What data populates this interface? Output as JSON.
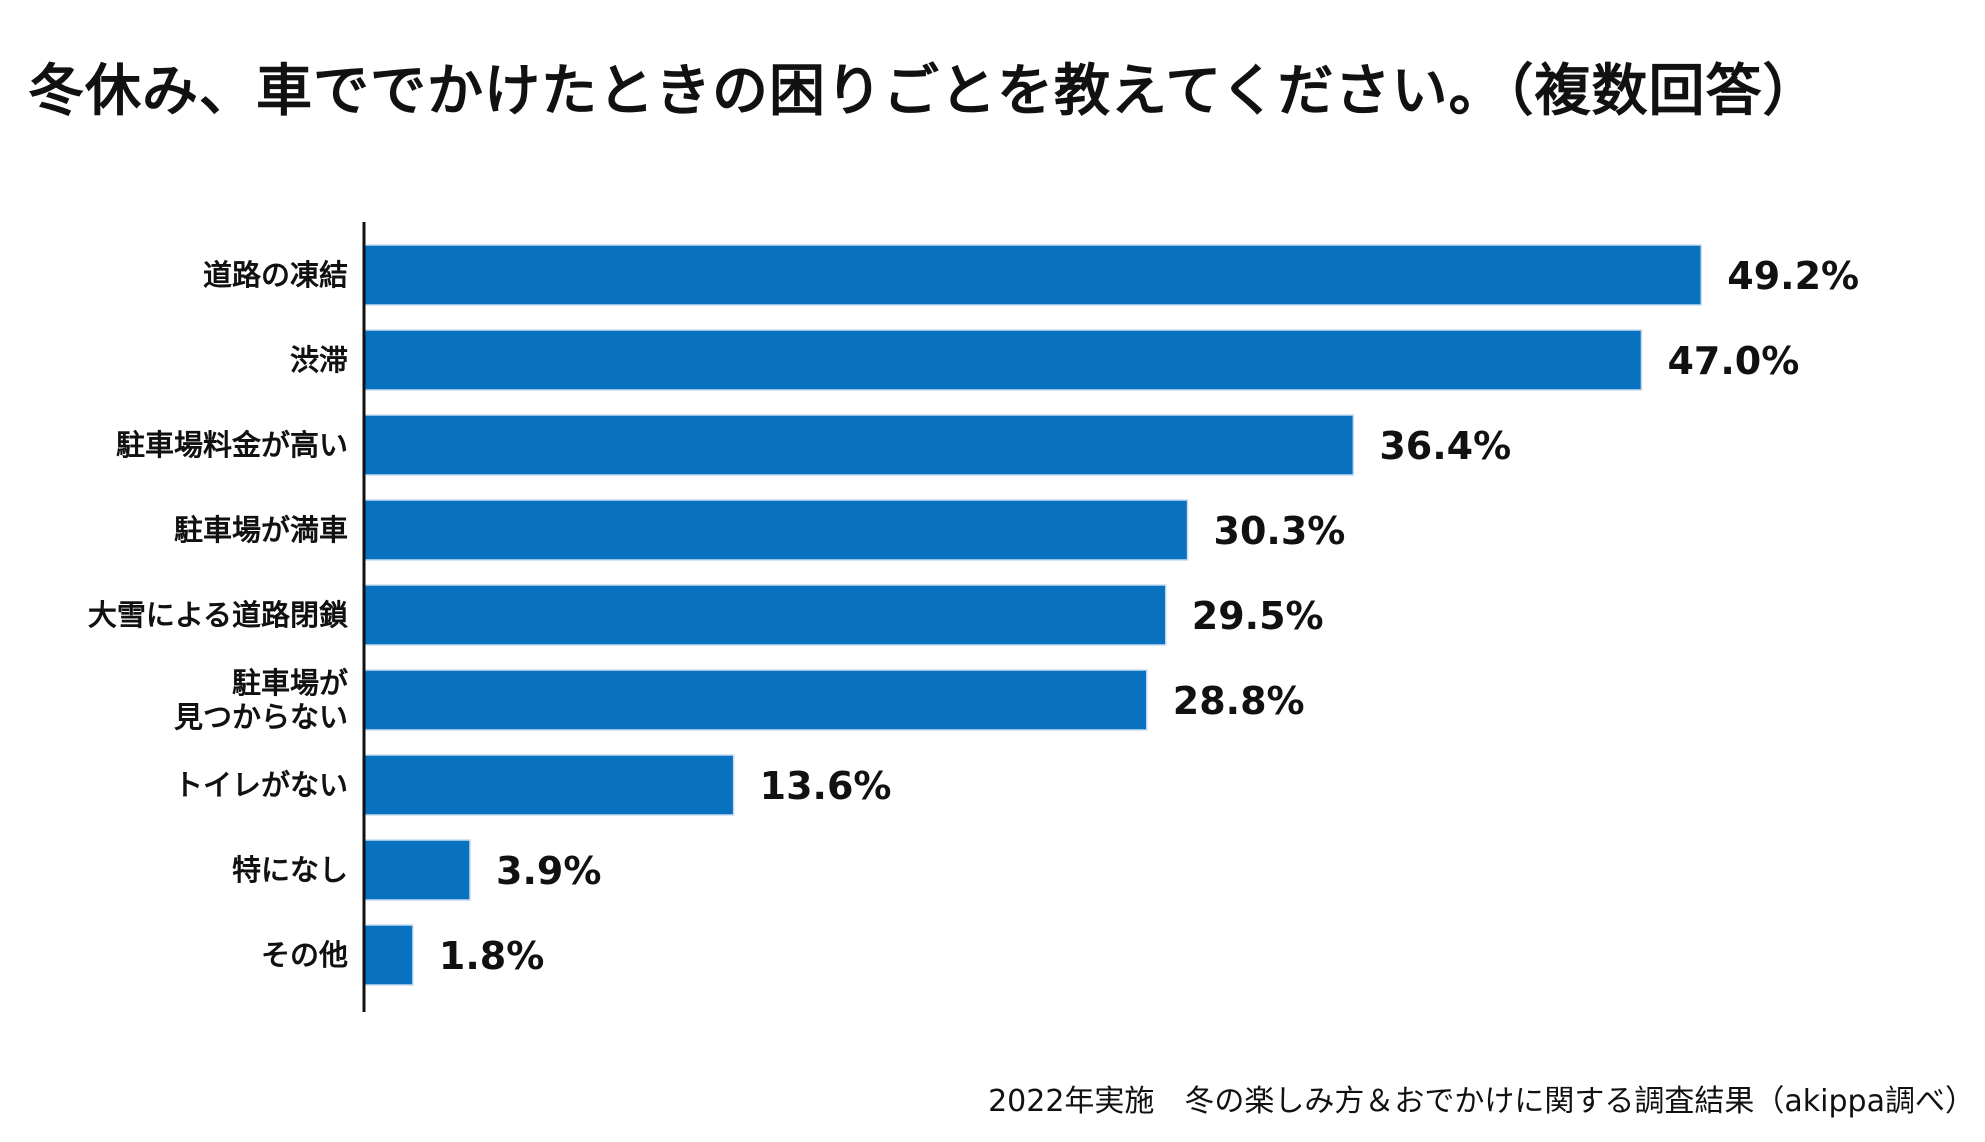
{
  "colors": {
    "bar": "#0872c1",
    "text": "#111111",
    "axis": "#111111",
    "background": "#ffffff"
  },
  "chart_data": {
    "type": "bar",
    "orientation": "horizontal",
    "title": "冬休み、車ででかけたときの困りごとを教えてください。（複数回答）",
    "categories": [
      "道路の凍結",
      "渋滞",
      "駐車場料金が高い",
      "駐車場が満車",
      "大雪による道路閉鎖",
      "駐車場が\n見つからない",
      "トイレがない",
      "特になし",
      "その他"
    ],
    "values": [
      49.2,
      47.0,
      36.4,
      30.3,
      29.5,
      28.8,
      13.6,
      3.9,
      1.8
    ],
    "value_labels": [
      "49.2%",
      "47.0%",
      "36.4%",
      "30.3%",
      "29.5%",
      "28.8%",
      "13.6%",
      "3.9%",
      "1.8%"
    ],
    "unit": "%",
    "xlim": [
      0,
      50
    ],
    "grid": false,
    "legend": "none",
    "xlabel": "",
    "ylabel": ""
  },
  "footer": {
    "source": "2022年実施　冬の楽しみ方＆おでかけに関する調査結果（akippa調べ）"
  }
}
